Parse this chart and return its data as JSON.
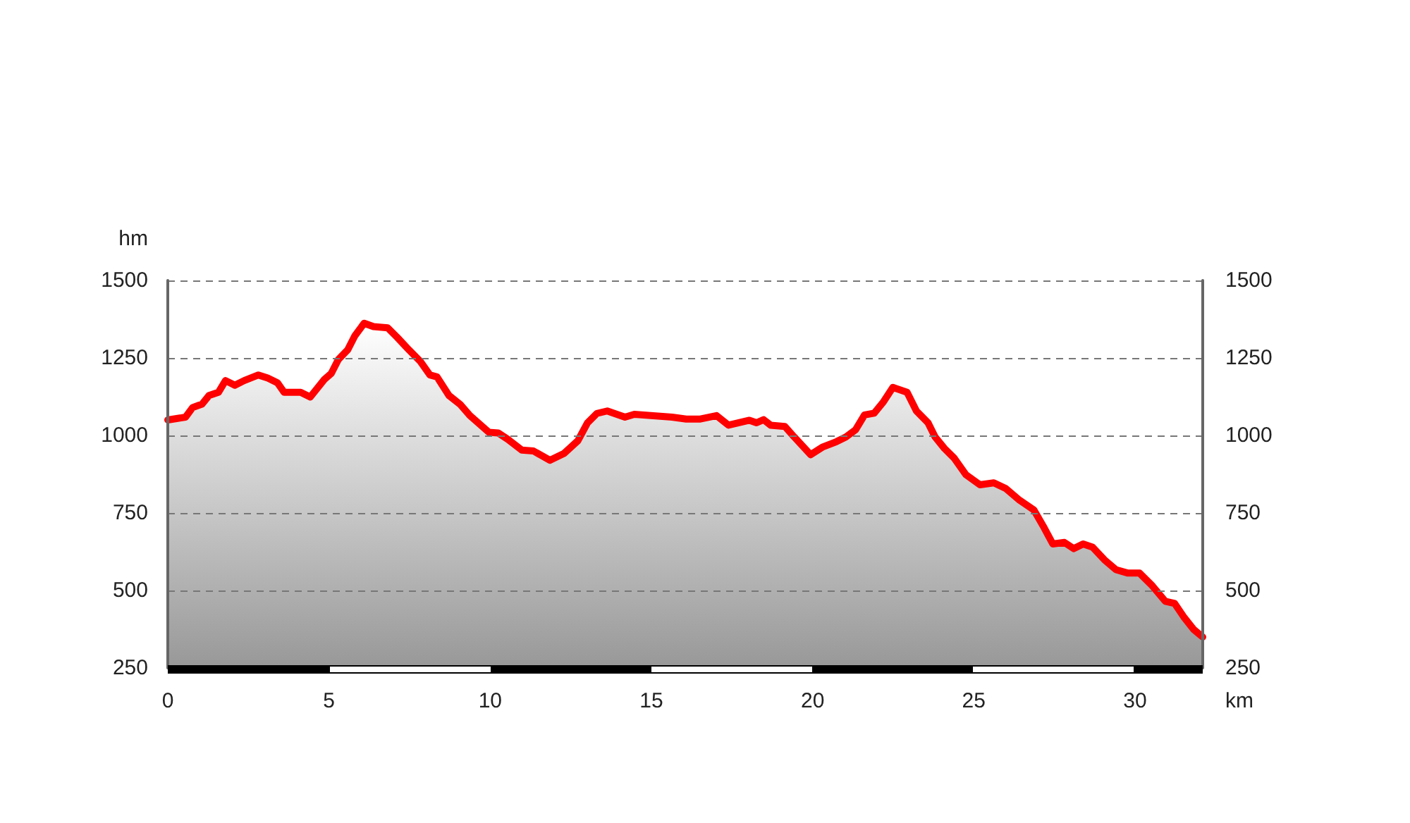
{
  "chart_data": {
    "type": "area",
    "xlabel": "km",
    "ylabel": "hm",
    "x": [
      0,
      0.55,
      0.77,
      1.06,
      1.28,
      1.57,
      1.79,
      2.08,
      2.37,
      2.81,
      3.1,
      3.4,
      3.61,
      4.12,
      4.42,
      4.85,
      5.07,
      5.29,
      5.58,
      5.8,
      6.09,
      6.38,
      6.82,
      7.11,
      7.48,
      7.84,
      8.13,
      8.35,
      8.72,
      9.08,
      9.37,
      9.96,
      10.25,
      10.54,
      10.98,
      11.34,
      11.85,
      12.29,
      12.72,
      13.02,
      13.31,
      13.63,
      14.18,
      14.47,
      14.91,
      15.64,
      16.08,
      16.52,
      17.02,
      17.39,
      18.04,
      18.26,
      18.48,
      18.7,
      19.14,
      19.43,
      19.94,
      20.3,
      20.74,
      21.03,
      21.33,
      21.61,
      21.91,
      22.2,
      22.49,
      22.93,
      23.22,
      23.58,
      23.8,
      24.09,
      24.39,
      24.75,
      25.19,
      25.62,
      25.99,
      26.42,
      26.86,
      27.15,
      27.45,
      27.81,
      28.1,
      28.39,
      28.68,
      29.05,
      29.41,
      29.78,
      30.14,
      30.51,
      30.94,
      31.23,
      31.53,
      31.82,
      32.03,
      32.1
    ],
    "series": [
      {
        "color": "#ff0000",
        "values": [
          1050,
          1059,
          1090,
          1101,
          1129,
          1139,
          1177,
          1162,
          1177,
          1195,
          1185,
          1170,
          1139,
          1139,
          1124,
          1180,
          1200,
          1245,
          1276,
          1321,
          1362,
          1351,
          1347,
          1317,
          1276,
          1238,
          1195,
          1189,
          1129,
          1099,
          1064,
          1010,
          1008,
          988,
          953,
          950,
          920,
          942,
          983,
          1041,
          1071,
          1079,
          1059,
          1068,
          1065,
          1059,
          1053,
          1053,
          1064,
          1033,
          1049,
          1041,
          1051,
          1033,
          1029,
          995,
          938,
          962,
          980,
          995,
          1018,
          1066,
          1072,
          1109,
          1155,
          1139,
          1079,
          1041,
          995,
          958,
          927,
          874,
          841,
          847,
          829,
          791,
          760,
          708,
          650,
          655,
          635,
          650,
          640,
          599,
          567,
          556,
          556,
          518,
          465,
          458,
          412,
          374,
          356,
          350
        ]
      }
    ],
    "xlim": [
      0,
      32.1
    ],
    "xticks": [
      0,
      5,
      10,
      15,
      20,
      25,
      30
    ],
    "ylim": [
      250,
      1500
    ],
    "yticks": [
      250,
      500,
      750,
      1000,
      1250,
      1500
    ],
    "y2lim": [
      250,
      1500
    ],
    "y2ticks": [
      250,
      500,
      750,
      1000,
      1250,
      1500
    ],
    "grid": "y",
    "marker": "none",
    "line_style": "solid"
  }
}
